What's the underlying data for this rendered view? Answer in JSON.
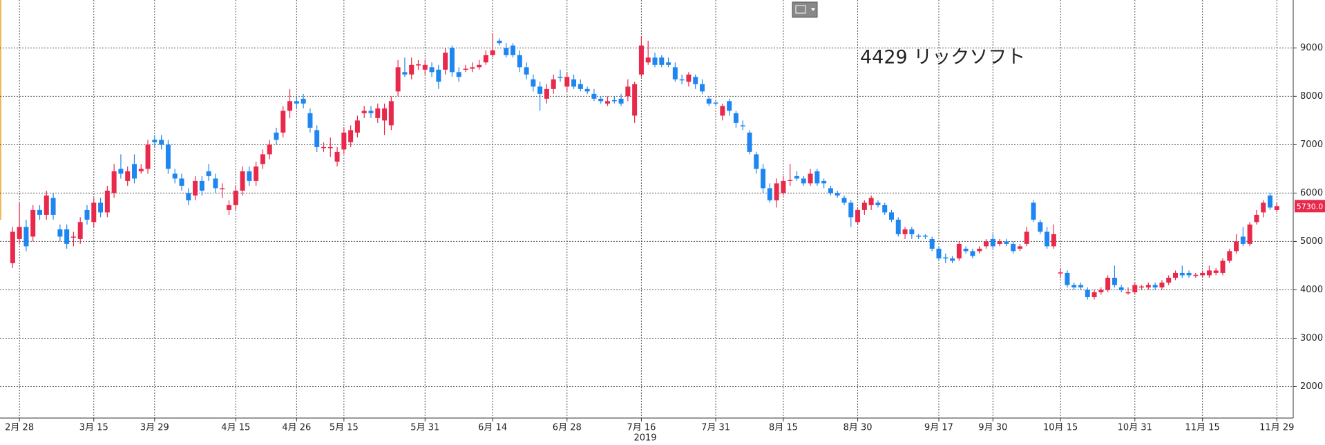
{
  "chart_data": {
    "type": "candlestick",
    "title": "4429 リックソフト",
    "x_annotation": "2019",
    "up_color": "#e8294b",
    "down_color": "#1e86f0",
    "grid": true,
    "ylim": [
      1350,
      9990
    ],
    "yticks": [
      2000,
      3000,
      4000,
      5000,
      6000,
      7000,
      8000,
      9000
    ],
    "last_price": {
      "value": 5730,
      "label": "5730.0"
    },
    "categories": [
      null,
      "2月 28",
      null,
      null,
      null,
      null,
      null,
      null,
      null,
      null,
      null,
      null,
      "3月 15",
      null,
      null,
      null,
      null,
      null,
      null,
      null,
      null,
      "3月 29",
      null,
      null,
      null,
      null,
      null,
      null,
      null,
      null,
      null,
      null,
      null,
      "4月 15",
      null,
      null,
      null,
      null,
      null,
      null,
      null,
      null,
      "4月 26",
      null,
      null,
      null,
      null,
      null,
      null,
      "5月 15",
      null,
      null,
      null,
      null,
      null,
      null,
      null,
      null,
      null,
      null,
      null,
      "5月 31",
      null,
      null,
      null,
      null,
      null,
      null,
      null,
      null,
      null,
      "6月 14",
      null,
      null,
      null,
      null,
      null,
      null,
      null,
      null,
      null,
      null,
      "6月 28",
      null,
      null,
      null,
      null,
      null,
      null,
      null,
      null,
      null,
      null,
      "7月 16",
      null,
      null,
      null,
      null,
      null,
      null,
      null,
      null,
      null,
      null,
      "7月 31",
      null,
      null,
      null,
      null,
      null,
      null,
      null,
      null,
      null,
      "8月 15",
      null,
      null,
      null,
      null,
      null,
      null,
      null,
      null,
      null,
      null,
      "8月 30",
      null,
      null,
      null,
      null,
      null,
      null,
      null,
      null,
      null,
      null,
      null,
      "9月 17",
      null,
      null,
      null,
      null,
      null,
      null,
      null,
      "9月 30",
      null,
      null,
      null,
      null,
      null,
      null,
      null,
      null,
      null,
      "10月 15",
      null,
      null,
      null,
      null,
      null,
      null,
      null,
      null,
      null,
      null,
      "10月 31",
      null,
      null,
      null,
      null,
      null,
      null,
      null,
      null,
      null,
      "11月 15",
      null,
      null,
      null,
      null,
      null,
      null,
      null,
      null,
      null,
      null,
      "11月 29"
    ],
    "ohlc": [
      [
        4550,
        5300,
        4450,
        5200
      ],
      [
        5050,
        5800,
        4950,
        5300
      ],
      [
        5300,
        5450,
        4800,
        4900
      ],
      [
        5100,
        5750,
        5000,
        5650
      ],
      [
        5650,
        5750,
        5450,
        5550
      ],
      [
        5550,
        6050,
        5450,
        5950
      ],
      [
        5900,
        6000,
        5450,
        5550
      ],
      [
        5250,
        5350,
        5000,
        5100
      ],
      [
        5250,
        5350,
        4850,
        4950
      ],
      [
        5100,
        5200,
        4900,
        5100
      ],
      [
        5050,
        5500,
        4950,
        5400
      ],
      [
        5650,
        5750,
        5350,
        5450
      ],
      [
        5400,
        5900,
        5300,
        5800
      ],
      [
        5800,
        5900,
        5500,
        5600
      ],
      [
        5600,
        6150,
        5500,
        6050
      ],
      [
        6000,
        6600,
        5900,
        6450
      ],
      [
        6500,
        6800,
        6300,
        6400
      ],
      [
        6250,
        6550,
        6150,
        6450
      ],
      [
        6600,
        6800,
        6200,
        6300
      ],
      [
        6450,
        6600,
        6400,
        6500
      ],
      [
        6500,
        7100,
        6400,
        7000
      ],
      [
        7100,
        7200,
        6950,
        7050
      ],
      [
        7100,
        7200,
        6900,
        7000
      ],
      [
        7000,
        7100,
        6400,
        6500
      ],
      [
        6400,
        6500,
        6200,
        6300
      ],
      [
        6300,
        6400,
        6050,
        6150
      ],
      [
        6000,
        6100,
        5750,
        5850
      ],
      [
        5950,
        6350,
        5850,
        6250
      ],
      [
        6250,
        6350,
        5950,
        6050
      ],
      [
        6450,
        6600,
        6250,
        6350
      ],
      [
        6300,
        6400,
        6000,
        6100
      ],
      [
        6100,
        6200,
        5900,
        6100
      ],
      [
        5650,
        5850,
        5550,
        5750
      ],
      [
        5750,
        6150,
        5650,
        6050
      ],
      [
        6050,
        6550,
        5950,
        6450
      ],
      [
        6450,
        6550,
        6150,
        6250
      ],
      [
        6250,
        6650,
        6150,
        6550
      ],
      [
        6600,
        6900,
        6500,
        6800
      ],
      [
        6800,
        7100,
        6700,
        7000
      ],
      [
        7250,
        7350,
        7000,
        7100
      ],
      [
        7250,
        7800,
        7150,
        7700
      ],
      [
        7700,
        8150,
        7550,
        7900
      ],
      [
        7900,
        8000,
        7750,
        7850
      ],
      [
        7950,
        8050,
        7750,
        7850
      ],
      [
        7650,
        7750,
        7250,
        7350
      ],
      [
        7300,
        7400,
        6850,
        6950
      ],
      [
        6950,
        7050,
        6850,
        6950
      ],
      [
        6950,
        7150,
        6750,
        6950
      ],
      [
        6650,
        6950,
        6550,
        6850
      ],
      [
        6900,
        7350,
        6800,
        7250
      ],
      [
        7050,
        7400,
        6950,
        7300
      ],
      [
        7250,
        7600,
        7150,
        7500
      ],
      [
        7650,
        7800,
        7550,
        7700
      ],
      [
        7700,
        7800,
        7550,
        7650
      ],
      [
        7550,
        7850,
        7450,
        7750
      ],
      [
        7500,
        7850,
        7200,
        7750
      ],
      [
        7400,
        8000,
        7300,
        7900
      ],
      [
        8100,
        8750,
        8000,
        8600
      ],
      [
        8500,
        8800,
        8400,
        8450
      ],
      [
        8450,
        8800,
        8350,
        8650
      ],
      [
        8650,
        8750,
        8550,
        8660
      ],
      [
        8550,
        8750,
        8450,
        8650
      ],
      [
        8600,
        8700,
        8400,
        8500
      ],
      [
        8550,
        8650,
        8150,
        8300
      ],
      [
        8550,
        9000,
        8450,
        8900
      ],
      [
        9000,
        9050,
        8400,
        8500
      ],
      [
        8500,
        8600,
        8300,
        8400
      ],
      [
        8550,
        8650,
        8500,
        8570
      ],
      [
        8570,
        8700,
        8500,
        8600
      ],
      [
        8600,
        8750,
        8550,
        8650
      ],
      [
        8700,
        8950,
        8650,
        8850
      ],
      [
        8850,
        9300,
        8800,
        8950
      ],
      [
        9150,
        9200,
        9050,
        9100
      ],
      [
        9000,
        9100,
        8800,
        8850
      ],
      [
        9050,
        9100,
        8800,
        8850
      ],
      [
        8850,
        8950,
        8500,
        8600
      ],
      [
        8600,
        8700,
        8350,
        8450
      ],
      [
        8350,
        8450,
        8100,
        8200
      ],
      [
        8200,
        8300,
        7700,
        8050
      ],
      [
        7950,
        8250,
        7850,
        8150
      ],
      [
        8150,
        8450,
        8050,
        8350
      ],
      [
        8400,
        8550,
        8300,
        8380
      ],
      [
        8200,
        8500,
        8100,
        8400
      ],
      [
        8350,
        8450,
        8150,
        8200
      ],
      [
        8250,
        8350,
        8100,
        8150
      ],
      [
        8150,
        8200,
        8050,
        8100
      ],
      [
        8050,
        8150,
        7900,
        7950
      ],
      [
        7950,
        8000,
        7850,
        7900
      ],
      [
        7850,
        8000,
        7800,
        7900
      ],
      [
        7920,
        8000,
        7850,
        7900
      ],
      [
        7950,
        8050,
        7800,
        7850
      ],
      [
        8000,
        8350,
        7900,
        8200
      ],
      [
        7600,
        8300,
        7450,
        8250
      ],
      [
        8450,
        9250,
        8400,
        9050
      ],
      [
        8700,
        9150,
        8650,
        8800
      ],
      [
        8800,
        8900,
        8600,
        8650
      ],
      [
        8800,
        8850,
        8600,
        8650
      ],
      [
        8700,
        8800,
        8600,
        8650
      ],
      [
        8600,
        8700,
        8300,
        8350
      ],
      [
        8350,
        8450,
        8250,
        8330
      ],
      [
        8300,
        8500,
        8200,
        8450
      ],
      [
        8400,
        8450,
        8150,
        8250
      ],
      [
        8250,
        8350,
        8050,
        8100
      ],
      [
        7950,
        8000,
        7800,
        7850
      ],
      [
        7870,
        7900,
        7800,
        7850
      ],
      [
        7600,
        7850,
        7500,
        7800
      ],
      [
        7900,
        7950,
        7600,
        7700
      ],
      [
        7650,
        7700,
        7350,
        7450
      ],
      [
        7400,
        7500,
        7300,
        7390
      ],
      [
        7250,
        7300,
        6800,
        6850
      ],
      [
        6800,
        6850,
        6400,
        6500
      ],
      [
        6500,
        6600,
        6000,
        6100
      ],
      [
        6100,
        6200,
        5800,
        5850
      ],
      [
        5850,
        6300,
        5700,
        6200
      ],
      [
        6000,
        6350,
        5950,
        6250
      ],
      [
        6250,
        6600,
        6150,
        6270
      ],
      [
        6350,
        6450,
        6250,
        6300
      ],
      [
        6300,
        6350,
        6150,
        6200
      ],
      [
        6200,
        6500,
        6150,
        6400
      ],
      [
        6450,
        6500,
        6150,
        6200
      ],
      [
        6250,
        6300,
        6100,
        6200
      ],
      [
        6100,
        6150,
        5950,
        6000
      ],
      [
        6000,
        6050,
        5900,
        5950
      ],
      [
        5900,
        5950,
        5750,
        5800
      ],
      [
        5800,
        5850,
        5300,
        5500
      ],
      [
        5400,
        5700,
        5350,
        5650
      ],
      [
        5650,
        5850,
        5550,
        5800
      ],
      [
        5750,
        5950,
        5650,
        5900
      ],
      [
        5800,
        5850,
        5700,
        5750
      ],
      [
        5750,
        5800,
        5550,
        5600
      ],
      [
        5600,
        5650,
        5400,
        5450
      ],
      [
        5450,
        5500,
        5100,
        5150
      ],
      [
        5150,
        5300,
        5050,
        5250
      ],
      [
        5250,
        5300,
        5050,
        5150
      ],
      [
        5120,
        5150,
        5050,
        5100
      ],
      [
        5120,
        5150,
        5050,
        5100
      ],
      [
        5050,
        5100,
        4800,
        4850
      ],
      [
        4850,
        4900,
        4600,
        4650
      ],
      [
        4670,
        4750,
        4550,
        4650
      ],
      [
        4650,
        4700,
        4550,
        4600
      ],
      [
        4650,
        5000,
        4600,
        4950
      ],
      [
        4850,
        4900,
        4750,
        4800
      ],
      [
        4800,
        4850,
        4650,
        4700
      ],
      [
        4800,
        4900,
        4750,
        4850
      ],
      [
        4900,
        5050,
        4850,
        5000
      ],
      [
        5050,
        5150,
        4850,
        4900
      ],
      [
        4950,
        5050,
        4900,
        5000
      ],
      [
        5000,
        5050,
        4900,
        4950
      ],
      [
        4950,
        5000,
        4750,
        4800
      ],
      [
        4850,
        4950,
        4800,
        4900
      ],
      [
        4950,
        5300,
        4900,
        5200
      ],
      [
        5800,
        5850,
        5400,
        5450
      ],
      [
        5400,
        5450,
        5150,
        5200
      ],
      [
        5200,
        5300,
        4850,
        4900
      ],
      [
        4900,
        5350,
        4850,
        5150
      ],
      [
        4340,
        4450,
        4250,
        4360
      ],
      [
        4350,
        4400,
        4050,
        4100
      ],
      [
        4100,
        4150,
        4000,
        4050
      ],
      [
        4100,
        4150,
        4000,
        4050
      ],
      [
        4000,
        4050,
        3800,
        3850
      ],
      [
        3850,
        4000,
        3800,
        3950
      ],
      [
        3950,
        4050,
        3900,
        4000
      ],
      [
        4000,
        4300,
        3950,
        4250
      ],
      [
        4250,
        4500,
        4050,
        4100
      ],
      [
        4050,
        4100,
        3950,
        4000
      ],
      [
        3950,
        4050,
        3900,
        3950
      ],
      [
        3950,
        4150,
        3900,
        4100
      ],
      [
        4050,
        4100,
        4000,
        4070
      ],
      [
        4050,
        4150,
        4000,
        4100
      ],
      [
        4100,
        4150,
        4000,
        4050
      ],
      [
        4050,
        4200,
        4000,
        4150
      ],
      [
        4150,
        4300,
        4100,
        4250
      ],
      [
        4250,
        4400,
        4200,
        4350
      ],
      [
        4350,
        4500,
        4250,
        4300
      ],
      [
        4350,
        4400,
        4250,
        4300
      ],
      [
        4300,
        4350,
        4250,
        4310
      ],
      [
        4300,
        4400,
        4250,
        4350
      ],
      [
        4300,
        4500,
        4250,
        4400
      ],
      [
        4350,
        4450,
        4300,
        4400
      ],
      [
        4350,
        4650,
        4300,
        4600
      ],
      [
        4600,
        4850,
        4550,
        4800
      ],
      [
        4800,
        5150,
        4750,
        5000
      ],
      [
        5100,
        5300,
        4900,
        4950
      ],
      [
        4950,
        5400,
        4900,
        5350
      ],
      [
        5400,
        5650,
        5350,
        5550
      ],
      [
        5600,
        5850,
        5500,
        5800
      ],
      [
        5950,
        6000,
        5650,
        5700
      ],
      [
        5650,
        5800,
        5600,
        5730
      ]
    ]
  }
}
